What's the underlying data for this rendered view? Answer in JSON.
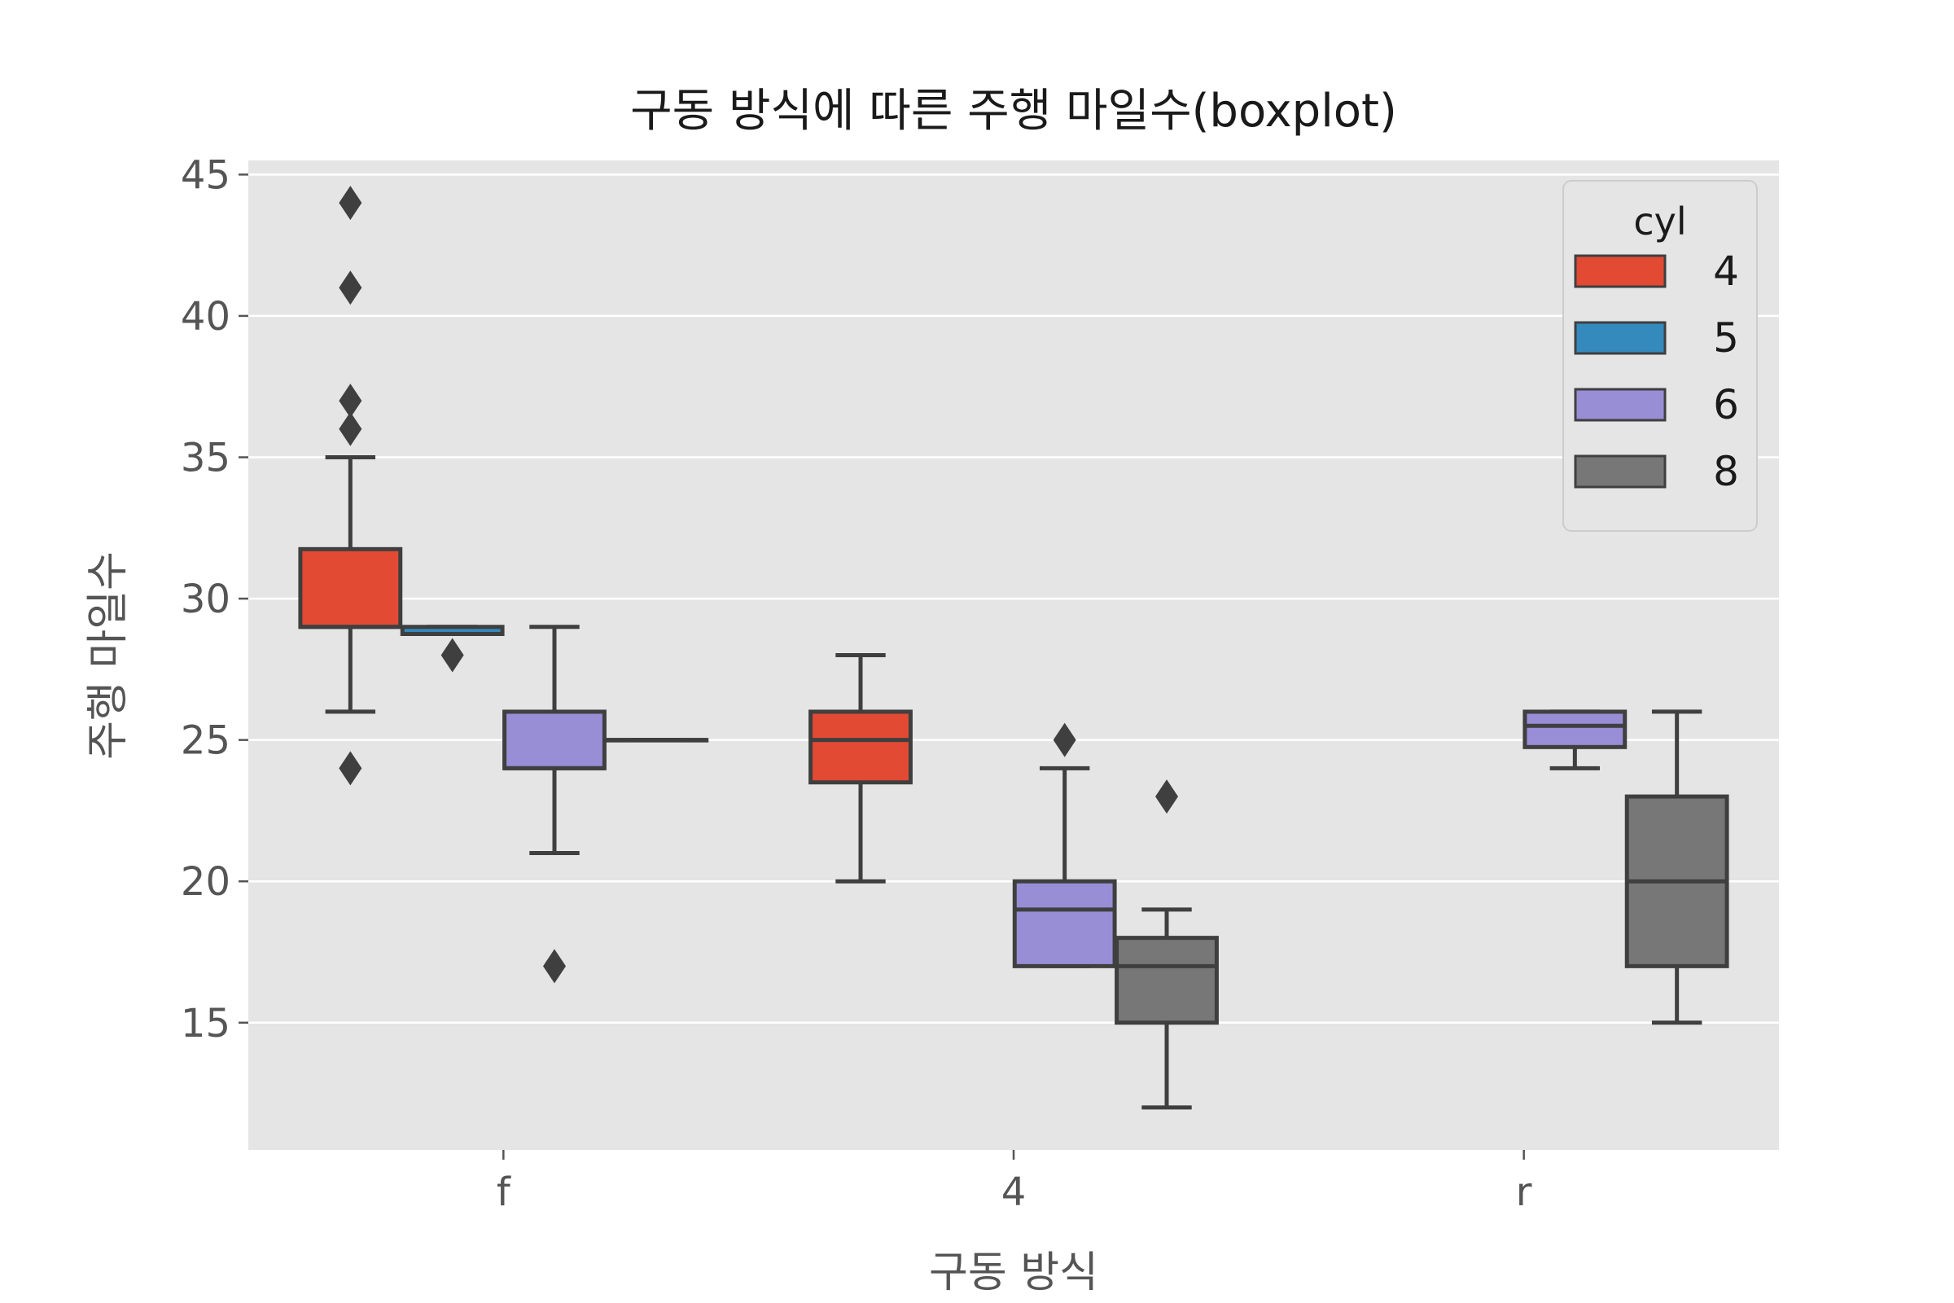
{
  "chart_data": {
    "type": "box",
    "title": "구동 방식에 따른 주행 마일수(boxplot)",
    "xlabel": "구동 방식",
    "ylabel": "주행 마일수",
    "categories": [
      "f",
      "4",
      "r"
    ],
    "ylim": [
      10.5,
      45.5
    ],
    "yticks": [
      15,
      20,
      25,
      30,
      35,
      40,
      45
    ],
    "grid": true,
    "legend": {
      "title": "cyl",
      "placement": "top-right"
    },
    "series": [
      {
        "name": "4",
        "color": "#E24A33"
      },
      {
        "name": "5",
        "color": "#348ABD"
      },
      {
        "name": "6",
        "color": "#988ED5"
      },
      {
        "name": "8",
        "color": "#777777"
      }
    ],
    "boxes": [
      {
        "category": "f",
        "series": "4",
        "whisker_low": 26,
        "q1": 29,
        "median": 29,
        "q3": 31.75,
        "whisker_high": 35,
        "outliers": [
          24,
          36,
          37,
          41,
          44
        ]
      },
      {
        "category": "f",
        "series": "5",
        "whisker_low": 28.75,
        "q1": 28.75,
        "median": 28.75,
        "q3": 29,
        "whisker_high": 29,
        "outliers": [
          28
        ]
      },
      {
        "category": "f",
        "series": "6",
        "whisker_low": 21,
        "q1": 24,
        "median": 24,
        "q3": 26,
        "whisker_high": 29,
        "outliers": [
          17
        ]
      },
      {
        "category": "f",
        "series": "8",
        "whisker_low": 25,
        "q1": 25,
        "median": 25,
        "q3": 25,
        "whisker_high": 25,
        "outliers": []
      },
      {
        "category": "4",
        "series": "4",
        "whisker_low": 20,
        "q1": 23.5,
        "median": 25,
        "q3": 26,
        "whisker_high": 28,
        "outliers": []
      },
      {
        "category": "4",
        "series": "6",
        "whisker_low": 17,
        "q1": 17,
        "median": 19,
        "q3": 20,
        "whisker_high": 24,
        "outliers": [
          25
        ]
      },
      {
        "category": "4",
        "series": "8",
        "whisker_low": 12,
        "q1": 15,
        "median": 17,
        "q3": 18,
        "whisker_high": 19,
        "outliers": [
          23
        ]
      },
      {
        "category": "r",
        "series": "6",
        "whisker_low": 24,
        "q1": 24.75,
        "median": 25.5,
        "q3": 26,
        "whisker_high": 26,
        "outliers": []
      },
      {
        "category": "r",
        "series": "8",
        "whisker_low": 15,
        "q1": 17,
        "median": 20,
        "q3": 23,
        "whisker_high": 26,
        "outliers": []
      }
    ]
  }
}
